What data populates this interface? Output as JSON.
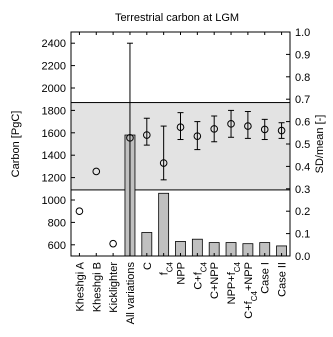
{
  "chart_data": {
    "type": "bar",
    "title": "Terrestrial carbon at LGM",
    "ylabel": "Carbon [PgC]",
    "y2label": "SD/mean [-]",
    "ylim": [
      500,
      2500
    ],
    "y2lim": [
      0.0,
      1.0
    ],
    "yticks": [
      600,
      800,
      1000,
      1200,
      1400,
      1600,
      1800,
      2000,
      2200,
      2400
    ],
    "y2ticks": [
      "0.0",
      "0.1",
      "0.2",
      "0.3",
      "0.4",
      "0.5",
      "0.6",
      "0.7",
      "0.8",
      "0.9",
      "1.0"
    ],
    "categories": [
      {
        "parts": [
          [
            "Kheshgi A",
            false
          ]
        ]
      },
      {
        "parts": [
          [
            "Kheshgi B",
            false
          ]
        ]
      },
      {
        "parts": [
          [
            "Kicklighter",
            false
          ]
        ]
      },
      {
        "parts": [
          [
            "All variations",
            false
          ]
        ]
      },
      {
        "parts": [
          [
            "C",
            false
          ]
        ]
      },
      {
        "parts": [
          [
            "f",
            false
          ],
          [
            "C4",
            true
          ]
        ]
      },
      {
        "parts": [
          [
            "NPP",
            false
          ]
        ]
      },
      {
        "parts": [
          [
            "C+f",
            false
          ],
          [
            "C4",
            true
          ]
        ]
      },
      {
        "parts": [
          [
            "C+NPP",
            false
          ]
        ]
      },
      {
        "parts": [
          [
            "NPP+f",
            false
          ],
          [
            "C4",
            true
          ]
        ]
      },
      {
        "parts": [
          [
            "C+f",
            false
          ],
          [
            "C4",
            true
          ],
          [
            "+NPP",
            false
          ]
        ]
      },
      {
        "parts": [
          [
            "Case I",
            false
          ]
        ]
      },
      {
        "parts": [
          [
            "Case II",
            false
          ]
        ]
      }
    ],
    "carbon_mean": [
      900,
      1255,
      610,
      1555,
      1580,
      1330,
      1650,
      1570,
      1635,
      1680,
      1660,
      1630,
      1620
    ],
    "carbon_error": [
      null,
      null,
      null,
      [
        500,
        2400
      ],
      [
        1490,
        1730
      ],
      [
        1180,
        1660
      ],
      [
        1540,
        1780
      ],
      [
        1450,
        1700
      ],
      [
        1520,
        1750
      ],
      [
        1560,
        1800
      ],
      [
        1550,
        1790
      ],
      [
        1540,
        1720
      ],
      [
        1550,
        1690
      ]
    ],
    "sd_over_mean": [
      null,
      null,
      null,
      0.54,
      0.105,
      0.28,
      0.065,
      0.075,
      0.06,
      0.06,
      0.055,
      0.06,
      0.045
    ],
    "shaded_band": [
      1090,
      1870
    ],
    "colors": {
      "bar": "#c0c0c0",
      "band": "#e3e3e3",
      "line": "#000000"
    }
  }
}
